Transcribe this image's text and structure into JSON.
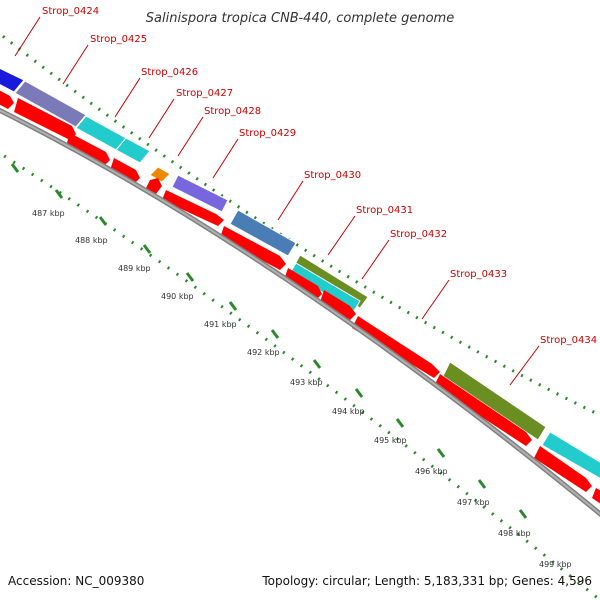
{
  "header": {
    "title": "Salinispora tropica CNB-440, complete genome"
  },
  "footer": {
    "accession": "Accession: NC_009380",
    "summary": "Topology: circular; Length: 5,183,331 bp; Genes: 4,596"
  },
  "colors": {
    "background": "#ffffff",
    "backbone": "#808080",
    "gene_arrow": "#ff0000",
    "tick": "#2a8a2a",
    "label_line": "#cc0000",
    "label_text": "#cc0000"
  },
  "genes": [
    {
      "label": "Strop_0424",
      "cog_color": "#1a1adb"
    },
    {
      "label": "Strop_0425",
      "cog_color": "#7a7ab8"
    },
    {
      "label": "Strop_0426",
      "cog_color": "#22cccc"
    },
    {
      "label": "Strop_0427",
      "cog_color": "#ee8800"
    },
    {
      "label": "Strop_0428",
      "cog_color": "#7766dd"
    },
    {
      "label": "Strop_0429",
      "cog_color": "#4a7db5"
    },
    {
      "label": "Strop_0430",
      "cog_color": "#4a7db5"
    },
    {
      "label": "Strop_0431",
      "cog_color": "#6b8e23"
    },
    {
      "label": "Strop_0432",
      "cog_color": "#22cccc"
    },
    {
      "label": "Strop_0433",
      "cog_color": "#22cccc"
    },
    {
      "label": "Strop_0434",
      "cog_color": "#6b8e23"
    }
  ],
  "kbp_ticks": [
    "487 kbp",
    "488 kbp",
    "489 kbp",
    "490 kbp",
    "491 kbp",
    "492 kbp",
    "493 kbp",
    "494 kbp",
    "495 kbp",
    "496 kbp",
    "497 kbp",
    "498 kbp",
    "499 kbp"
  ]
}
